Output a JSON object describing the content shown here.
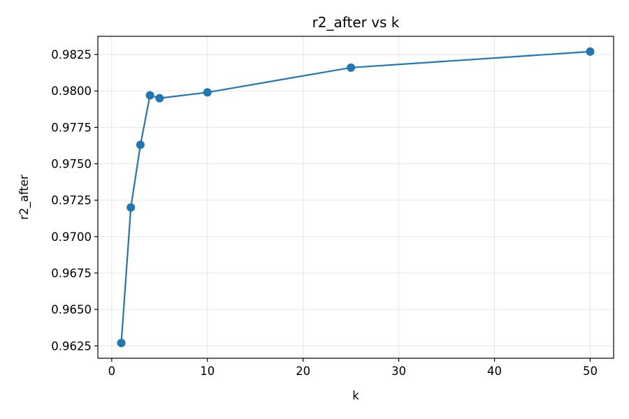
{
  "chart_data": {
    "type": "line",
    "title": "r2_after vs k",
    "xlabel": "k",
    "ylabel": "r2_after",
    "xlim": [
      -1.45,
      52.45
    ],
    "ylim": [
      0.96165,
      0.98375
    ],
    "xticks": [
      0,
      10,
      20,
      30,
      40,
      50
    ],
    "xtick_labels": [
      "0",
      "10",
      "20",
      "30",
      "40",
      "50"
    ],
    "yticks": [
      0.9625,
      0.965,
      0.9675,
      0.97,
      0.9725,
      0.975,
      0.9775,
      0.98,
      0.9825
    ],
    "ytick_labels": [
      "0.9625",
      "0.9650",
      "0.9675",
      "0.9700",
      "0.9725",
      "0.9750",
      "0.9775",
      "0.9800",
      "0.9825"
    ],
    "grid": true,
    "series": [
      {
        "color": "#1f77b4",
        "marker": "circle",
        "x": [
          1,
          2,
          3,
          4,
          5,
          10,
          25,
          50
        ],
        "y": [
          0.9627,
          0.972,
          0.9763,
          0.9797,
          0.9795,
          0.9799,
          0.9816,
          0.9827
        ]
      }
    ]
  }
}
